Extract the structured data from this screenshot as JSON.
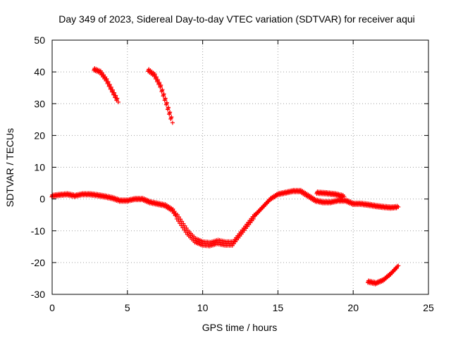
{
  "chart_data": {
    "type": "scatter",
    "title": "Day 349 of 2023, Sidereal Day-to-day VTEC variation (SDTVAR) for receiver aqui",
    "xlabel": "GPS time / hours",
    "ylabel": "SDTVAR / TECUs",
    "xlim": [
      0,
      25
    ],
    "ylim": [
      -30,
      50
    ],
    "xticks": [
      0,
      5,
      10,
      15,
      20,
      25
    ],
    "yticks": [
      -30,
      -20,
      -10,
      0,
      10,
      20,
      30,
      40,
      50
    ],
    "grid": true,
    "legend": "none",
    "series_color": "#ff0000",
    "series": [
      {
        "name": "main",
        "x": [
          0.0,
          0.5,
          1.0,
          1.5,
          2.0,
          2.5,
          3.0,
          3.5,
          4.0,
          4.5,
          5.0,
          5.5,
          6.0,
          6.5,
          7.0,
          7.5,
          8.0,
          8.5,
          9.0,
          9.5,
          10.0,
          10.5,
          11.0,
          11.5,
          12.0,
          12.5,
          13.0,
          13.5,
          14.0,
          14.5,
          15.0,
          15.5,
          16.0,
          16.5,
          17.0,
          17.5,
          18.0,
          18.5,
          19.0,
          19.5,
          20.0,
          20.5,
          21.0,
          21.5,
          22.0,
          22.5,
          23.0
        ],
        "y": [
          1.0,
          1.3,
          1.5,
          1.0,
          1.5,
          1.5,
          1.2,
          0.8,
          0.3,
          -0.5,
          -0.5,
          0.0,
          0.0,
          -1.0,
          -1.5,
          -2.0,
          -3.5,
          -7.0,
          -10.5,
          -13.0,
          -14.0,
          -14.2,
          -13.5,
          -14.0,
          -14.0,
          -11.0,
          -8.0,
          -5.0,
          -2.5,
          0.0,
          1.5,
          2.0,
          2.5,
          2.5,
          1.0,
          -0.5,
          -1.0,
          -1.0,
          -0.5,
          -0.5,
          -1.5,
          -1.5,
          -1.8,
          -2.2,
          -2.5,
          -2.7,
          -2.5
        ]
      },
      {
        "name": "arc-a",
        "x": [
          2.8,
          3.2,
          3.6,
          4.0,
          4.4
        ],
        "y": [
          40.8,
          40.0,
          37.5,
          34.0,
          30.5
        ]
      },
      {
        "name": "arc-b",
        "x": [
          6.4,
          6.8,
          7.2,
          7.6,
          8.0
        ],
        "y": [
          40.5,
          39.0,
          35.5,
          30.0,
          24.0
        ]
      },
      {
        "name": "arc-c",
        "x": [
          17.6,
          18.2,
          18.8,
          19.4
        ],
        "y": [
          2.0,
          1.8,
          1.5,
          0.8
        ]
      },
      {
        "name": "arc-d",
        "x": [
          21.0,
          21.5,
          22.0,
          22.5,
          23.0
        ],
        "y": [
          -26.0,
          -26.5,
          -25.5,
          -23.5,
          -21.0
        ]
      }
    ]
  }
}
